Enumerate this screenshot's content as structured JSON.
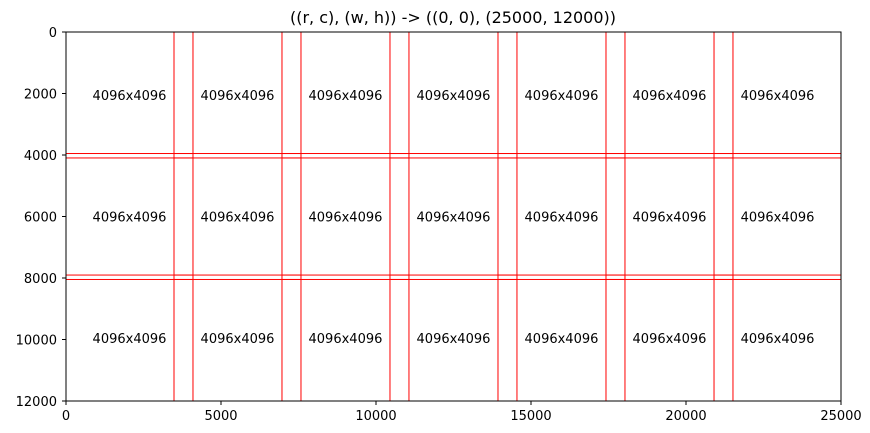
{
  "chart_data": {
    "type": "tile-grid",
    "title": "((r, c), (w, h)) -> ((0, 0), (25000, 12000))",
    "xlim": [
      0,
      25000
    ],
    "ylim": [
      12000,
      0
    ],
    "x_ticks": [
      0,
      5000,
      10000,
      15000,
      20000,
      25000
    ],
    "y_ticks": [
      0,
      2000,
      4000,
      6000,
      8000,
      10000,
      12000
    ],
    "grid": false,
    "tile_size": [
      4096,
      4096
    ],
    "tile_color": "#ff0000",
    "tiles": [
      {
        "x": 0,
        "y": 0,
        "w": 4096,
        "h": 4096,
        "label": "4096x4096"
      },
      {
        "x": 3484,
        "y": 0,
        "w": 4096,
        "h": 4096,
        "label": "4096x4096"
      },
      {
        "x": 6967,
        "y": 0,
        "w": 4096,
        "h": 4096,
        "label": "4096x4096"
      },
      {
        "x": 10451,
        "y": 0,
        "w": 4096,
        "h": 4096,
        "label": "4096x4096"
      },
      {
        "x": 13935,
        "y": 0,
        "w": 4096,
        "h": 4096,
        "label": "4096x4096"
      },
      {
        "x": 17419,
        "y": 0,
        "w": 4096,
        "h": 4096,
        "label": "4096x4096"
      },
      {
        "x": 20904,
        "y": 0,
        "w": 4096,
        "h": 4096,
        "label": "4096x4096"
      },
      {
        "x": 0,
        "y": 3952,
        "w": 4096,
        "h": 4096,
        "label": "4096x4096"
      },
      {
        "x": 3484,
        "y": 3952,
        "w": 4096,
        "h": 4096,
        "label": "4096x4096"
      },
      {
        "x": 6967,
        "y": 3952,
        "w": 4096,
        "h": 4096,
        "label": "4096x4096"
      },
      {
        "x": 10451,
        "y": 3952,
        "w": 4096,
        "h": 4096,
        "label": "4096x4096"
      },
      {
        "x": 13935,
        "y": 3952,
        "w": 4096,
        "h": 4096,
        "label": "4096x4096"
      },
      {
        "x": 17419,
        "y": 3952,
        "w": 4096,
        "h": 4096,
        "label": "4096x4096"
      },
      {
        "x": 20904,
        "y": 3952,
        "w": 4096,
        "h": 4096,
        "label": "4096x4096"
      },
      {
        "x": 0,
        "y": 7904,
        "w": 4096,
        "h": 4096,
        "label": "4096x4096"
      },
      {
        "x": 3484,
        "y": 7904,
        "w": 4096,
        "h": 4096,
        "label": "4096x4096"
      },
      {
        "x": 6967,
        "y": 7904,
        "w": 4096,
        "h": 4096,
        "label": "4096x4096"
      },
      {
        "x": 10451,
        "y": 7904,
        "w": 4096,
        "h": 4096,
        "label": "4096x4096"
      },
      {
        "x": 13935,
        "y": 7904,
        "w": 4096,
        "h": 4096,
        "label": "4096x4096"
      },
      {
        "x": 17419,
        "y": 7904,
        "w": 4096,
        "h": 4096,
        "label": "4096x4096"
      },
      {
        "x": 20904,
        "y": 7904,
        "w": 4096,
        "h": 4096,
        "label": "4096x4096"
      }
    ]
  }
}
